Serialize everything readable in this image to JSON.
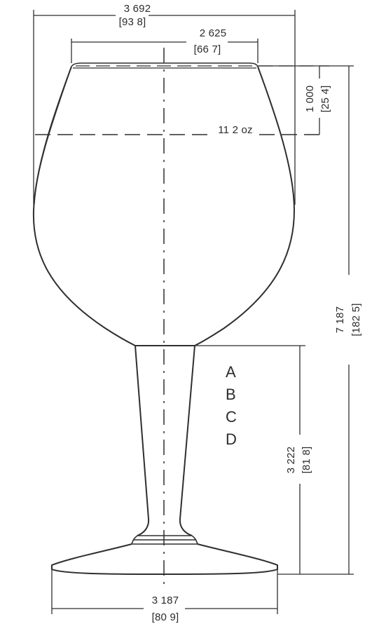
{
  "dimensions": {
    "overall_width": {
      "imperial": "3 692",
      "metric": "[93 8]"
    },
    "rim_width": {
      "imperial": "2 625",
      "metric": "[66 7]"
    },
    "fill_depth": {
      "imperial": "1 000",
      "metric": "[25 4]"
    },
    "fill_capacity": "11 2 oz",
    "overall_height": {
      "imperial": "7 187",
      "metric": "[182 5]"
    },
    "stem_height": {
      "imperial": "3 222",
      "metric": "[81 8]"
    },
    "base_width": {
      "imperial": "3 187",
      "metric": "[80 9]"
    }
  },
  "variant_letters": [
    "A",
    "B",
    "C",
    "D"
  ]
}
